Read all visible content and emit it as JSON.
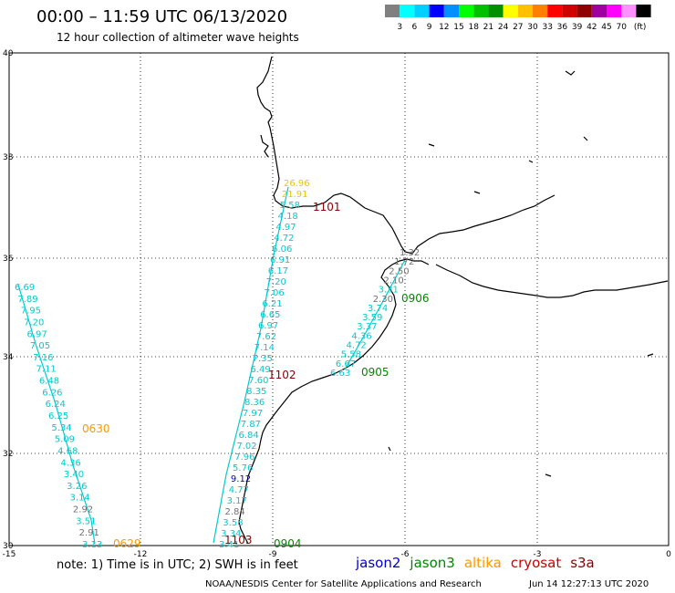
{
  "header": {
    "title": "00:00 – 11:59 UTC 06/13/2020",
    "subtitle": "12 hour collection of altimeter wave heights"
  },
  "colorbar": {
    "unit": "(ft)",
    "colors": [
      "#808080",
      "#00ffff",
      "#00d0ff",
      "#0000ff",
      "#0090ff",
      "#00ff00",
      "#00c000",
      "#009000",
      "#ffff00",
      "#ffc000",
      "#ff8000",
      "#ff0000",
      "#d00000",
      "#900000",
      "#a000a0",
      "#ff00ff",
      "#ff90ff",
      "#000000"
    ],
    "labels": [
      "3",
      "6",
      "9",
      "12",
      "15",
      "18",
      "21",
      "24",
      "27",
      "30",
      "33",
      "36",
      "39",
      "42",
      "45",
      "70"
    ]
  },
  "axes": {
    "x_ticks": [
      "-15",
      "-12",
      "-9",
      "-6",
      "-3",
      "0"
    ],
    "y_ticks": [
      "40",
      "38",
      "36",
      "34",
      "32",
      "30"
    ]
  },
  "colors": {
    "cyan": "#00cccc",
    "gray": "#707070",
    "blue": "#0000cc",
    "yellow": "#e6c800",
    "jason2": "#0000cc",
    "jason3": "#008800",
    "altika": "#ff9900",
    "cryosat": "#cc0000",
    "s3a": "#880000"
  },
  "tracks": {
    "track_west": {
      "values": [
        "6.69",
        "7.89",
        "7.95",
        "7.20",
        "6.97",
        "7.05",
        "7.16",
        "7.11",
        "6.48",
        "6.26",
        "6.24",
        "6.25",
        "5.34",
        "5.09",
        "4.68",
        "4.36",
        "3.40",
        "3.26",
        "3.14",
        "2.92",
        "3.51",
        "2.91",
        "3.13"
      ],
      "colors": [
        "cyan",
        "cyan",
        "cyan",
        "cyan",
        "cyan",
        "cyan",
        "cyan",
        "cyan",
        "cyan",
        "cyan",
        "cyan",
        "cyan",
        "cyan",
        "cyan",
        "cyan",
        "cyan",
        "cyan",
        "cyan",
        "cyan",
        "gray",
        "cyan",
        "gray",
        "cyan"
      ]
    },
    "track_middle": {
      "values": [
        "26.96",
        "21.91",
        "5.58",
        "4.18",
        "4.97",
        "4.72",
        "6.06",
        "6.91",
        "6.17",
        "7.20",
        "7.06",
        "6.21",
        "6.65",
        "6.97",
        "7.62",
        "7.14",
        "7.35",
        "6.49",
        "7.60",
        "8.35",
        "8.36",
        "7.97",
        "7.87",
        "6.84",
        "7.02",
        "7.96",
        "5.76",
        "9.12",
        "4.77",
        "3.17",
        "2.84",
        "3.58",
        "3.34",
        "3.41"
      ],
      "colors": [
        "yellow",
        "yellow",
        "cyan",
        "cyan",
        "cyan",
        "cyan",
        "cyan",
        "cyan",
        "cyan",
        "cyan",
        "cyan",
        "cyan",
        "cyan",
        "cyan",
        "cyan",
        "cyan",
        "cyan",
        "cyan",
        "cyan",
        "cyan",
        "cyan",
        "cyan",
        "cyan",
        "cyan",
        "cyan",
        "cyan",
        "cyan",
        "blue",
        "cyan",
        "cyan",
        "gray",
        "cyan",
        "cyan",
        "cyan"
      ]
    },
    "track_east": {
      "values": [
        "1.32",
        "1.72",
        "2.50",
        "2.10",
        "3.31",
        "2.30",
        "3.74",
        "3.59",
        "3.37",
        "4.36",
        "4.72",
        "5.58",
        "6.67",
        "6.63"
      ],
      "colors": [
        "gray",
        "gray",
        "gray",
        "gray",
        "cyan",
        "gray",
        "cyan",
        "cyan",
        "cyan",
        "cyan",
        "cyan",
        "cyan",
        "cyan",
        "cyan"
      ]
    }
  },
  "time_labels": [
    {
      "text": "1101",
      "color": "s3a"
    },
    {
      "text": "0906",
      "color": "jason3"
    },
    {
      "text": "1102",
      "color": "s3a"
    },
    {
      "text": "0905",
      "color": "jason3"
    },
    {
      "text": "0630",
      "color": "altika"
    },
    {
      "text": "0629",
      "color": "altika"
    },
    {
      "text": "1103",
      "color": "s3a"
    },
    {
      "text": "0904",
      "color": "jason3"
    }
  ],
  "footer": {
    "note": "note:  1) Time is in UTC;  2) SWH is in feet",
    "satellites": [
      {
        "name": "jason2",
        "color": "jason2"
      },
      {
        "name": "jason3",
        "color": "jason3"
      },
      {
        "name": "altika",
        "color": "altika"
      },
      {
        "name": "cryosat",
        "color": "cryosat"
      },
      {
        "name": "s3a",
        "color": "s3a"
      }
    ],
    "credit": "NOAA/NESDIS Center for Satellite Applications and Research",
    "timestamp": "Jun 14 12:27:13 UTC 2020"
  }
}
